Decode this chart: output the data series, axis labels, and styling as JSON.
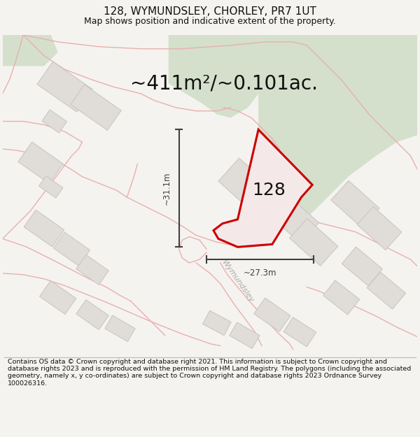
{
  "title_line1": "128, WYMUNDSLEY, CHORLEY, PR7 1UT",
  "title_line2": "Map shows position and indicative extent of the property.",
  "area_text": "~411m²/~0.101ac.",
  "plot_number": "128",
  "dim_horizontal": "~27.3m",
  "dim_vertical": "~31.1m",
  "road_label": "Wymundsley",
  "footer_text": "Contains OS data © Crown copyright and database right 2021. This information is subject to Crown copyright and database rights 2023 and is reproduced with the permission of HM Land Registry. The polygons (including the associated geometry, namely x, y co-ordinates) are subject to Crown copyright and database rights 2023 Ordnance Survey 100026316.",
  "bg_color": "#f5f3ef",
  "map_bg": "#f5f3ef",
  "building_fill": "#e0dcd8",
  "building_edge": "#c8c4c0",
  "road_edge": "#e8b0b0",
  "plot_stroke": "#cc0000",
  "plot_fill": "#f5e8e8",
  "green_fill": "#d4e0cc",
  "dim_color": "#404040",
  "title_color": "#111111",
  "footer_color": "#111111",
  "title_fontsize": 11,
  "subtitle_fontsize": 9,
  "area_fontsize": 20,
  "plot_label_fontsize": 18,
  "dim_fontsize": 8.5,
  "road_label_fontsize": 8,
  "footer_fontsize": 6.8
}
